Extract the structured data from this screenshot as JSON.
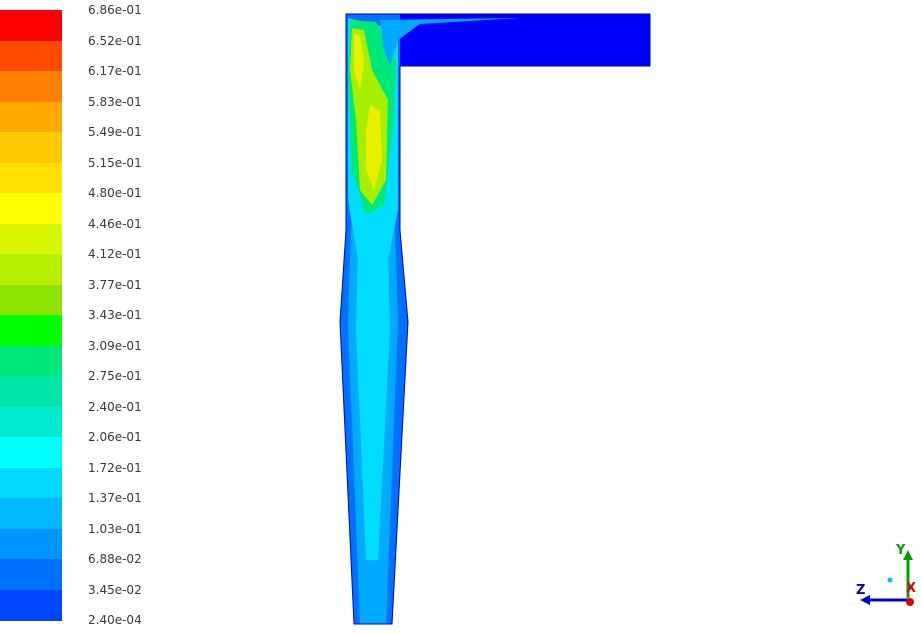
{
  "colormap": {
    "labels": [
      "6.86e-01",
      "6.52e-01",
      "6.17e-01",
      "5.83e-01",
      "5.49e-01",
      "5.15e-01",
      "4.80e-01",
      "4.46e-01",
      "4.12e-01",
      "3.77e-01",
      "3.43e-01",
      "3.09e-01",
      "2.75e-01",
      "2.40e-01",
      "2.06e-01",
      "1.72e-01",
      "1.37e-01",
      "1.03e-01",
      "6.88e-02",
      "3.45e-02",
      "2.40e-04"
    ],
    "colors": [
      "#ff0000",
      "#ff4a00",
      "#ff8000",
      "#ffa800",
      "#ffc800",
      "#ffe000",
      "#ffff00",
      "#d6f700",
      "#b8ee00",
      "#8fe200",
      "#00ff00",
      "#00e878",
      "#00e4a8",
      "#00ecd0",
      "#00ffff",
      "#00d8ff",
      "#00b8ff",
      "#0096ff",
      "#0070ff",
      "#0046ff",
      "#0000ff"
    ]
  },
  "contour": {
    "field_colors": {
      "low": "#0000ff",
      "deep": "#0036f0",
      "mid": "#0070ff",
      "light": "#00aaff",
      "cyan": "#00ddff",
      "green": "#00e878",
      "lime": "#a8ee00",
      "yellow": "#e8f000"
    }
  },
  "triad": {
    "y_label": "Y",
    "z_label": "Z",
    "x_label": "X",
    "colors": {
      "y": "#00a000",
      "z": "#0000d0",
      "x": "#e00000",
      "dot": "#00c0ff"
    }
  }
}
